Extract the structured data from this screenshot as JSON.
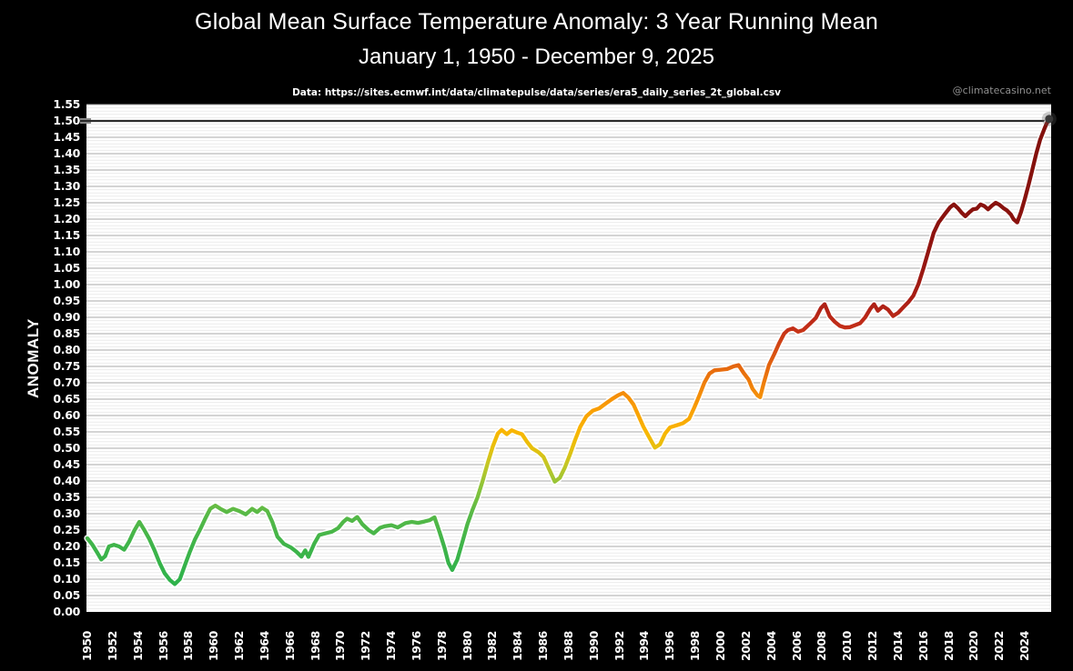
{
  "title": "Global Mean Surface Temperature Anomaly: 3 Year Running Mean",
  "subtitle": "January 1, 1950 - December 9, 2025",
  "source_note": "Data: https://sites.ecmwf.int/data/climatepulse/data/series/era5_daily_series_2t_global.csv",
  "credit": "@climatecasino.net",
  "chart_data": {
    "type": "line",
    "title": "Global Mean Surface Temperature Anomaly: 3 Year Running Mean",
    "subtitle": "January 1, 1950 - December 9, 2025",
    "xlabel": "",
    "ylabel": "ANOMALY",
    "ylim": [
      0,
      1.55
    ],
    "xlim": [
      1949.9,
      2026.1
    ],
    "grid": true,
    "y_major_step": 0.05,
    "y_minor_step": 0.01,
    "y_tick_labels": [
      "0.00",
      "0.05",
      "0.10",
      "0.15",
      "0.20",
      "0.25",
      "0.30",
      "0.35",
      "0.40",
      "0.45",
      "0.50",
      "0.55",
      "0.60",
      "0.65",
      "0.70",
      "0.75",
      "0.80",
      "0.85",
      "0.90",
      "0.95",
      "1.00",
      "1.05",
      "1.10",
      "1.15",
      "1.20",
      "1.25",
      "1.30",
      "1.35",
      "1.40",
      "1.45",
      "1.50",
      "1.55"
    ],
    "x_tick_labels": [
      "1950",
      "1952",
      "1954",
      "1956",
      "1958",
      "1960",
      "1962",
      "1964",
      "1966",
      "1968",
      "1970",
      "1972",
      "1974",
      "1976",
      "1978",
      "1980",
      "1982",
      "1984",
      "1986",
      "1988",
      "1990",
      "1992",
      "1994",
      "1996",
      "1998",
      "2000",
      "2002",
      "2004",
      "2006",
      "2008",
      "2010",
      "2012",
      "2014",
      "2016",
      "2018",
      "2020",
      "2022",
      "2024"
    ],
    "reference_line": {
      "value": 1.5,
      "color": "#2b2b2b",
      "cap_color": "#8f8f8f"
    },
    "end_marker": {
      "x": 2025.92,
      "y": 1.506,
      "color": "#3a3a3a"
    },
    "gridline_major_color": "#a8a8a8",
    "gridline_minor_color": "#ebebeb",
    "line_halo_color": "#ffffff",
    "color_stops": [
      [
        0.0,
        "#22b14c"
      ],
      [
        0.2,
        "#3eb44a"
      ],
      [
        0.3,
        "#57b947"
      ],
      [
        0.38,
        "#8ac43a"
      ],
      [
        0.45,
        "#c4c726"
      ],
      [
        0.5,
        "#e7c00d"
      ],
      [
        0.55,
        "#f9b602"
      ],
      [
        0.62,
        "#f99e05"
      ],
      [
        0.68,
        "#f2870a"
      ],
      [
        0.74,
        "#e76b0e"
      ],
      [
        0.8,
        "#d64d14"
      ],
      [
        0.87,
        "#c32e18"
      ],
      [
        0.94,
        "#ad2016"
      ],
      [
        1.05,
        "#971712"
      ],
      [
        1.2,
        "#8a120e"
      ],
      [
        1.55,
        "#7f0f0b"
      ]
    ],
    "series": [
      {
        "name": "3 Year Running Mean",
        "points": [
          [
            1950.0,
            0.225
          ],
          [
            1950.4,
            0.205
          ],
          [
            1950.8,
            0.18
          ],
          [
            1951.1,
            0.16
          ],
          [
            1951.4,
            0.17
          ],
          [
            1951.7,
            0.2
          ],
          [
            1952.1,
            0.205
          ],
          [
            1952.5,
            0.2
          ],
          [
            1952.9,
            0.19
          ],
          [
            1953.3,
            0.215
          ],
          [
            1953.7,
            0.248
          ],
          [
            1954.1,
            0.275
          ],
          [
            1954.5,
            0.25
          ],
          [
            1954.9,
            0.222
          ],
          [
            1955.3,
            0.188
          ],
          [
            1955.7,
            0.15
          ],
          [
            1956.1,
            0.118
          ],
          [
            1956.5,
            0.098
          ],
          [
            1956.9,
            0.085
          ],
          [
            1957.3,
            0.1
          ],
          [
            1957.7,
            0.143
          ],
          [
            1958.1,
            0.185
          ],
          [
            1958.5,
            0.222
          ],
          [
            1958.9,
            0.252
          ],
          [
            1959.3,
            0.285
          ],
          [
            1959.7,
            0.315
          ],
          [
            1960.1,
            0.325
          ],
          [
            1960.5,
            0.315
          ],
          [
            1961.0,
            0.305
          ],
          [
            1961.5,
            0.315
          ],
          [
            1962.0,
            0.308
          ],
          [
            1962.5,
            0.298
          ],
          [
            1963.0,
            0.315
          ],
          [
            1963.4,
            0.305
          ],
          [
            1963.8,
            0.318
          ],
          [
            1964.2,
            0.308
          ],
          [
            1964.6,
            0.275
          ],
          [
            1965.0,
            0.23
          ],
          [
            1965.5,
            0.208
          ],
          [
            1966.1,
            0.196
          ],
          [
            1966.5,
            0.184
          ],
          [
            1966.9,
            0.169
          ],
          [
            1967.2,
            0.188
          ],
          [
            1967.45,
            0.168
          ],
          [
            1967.9,
            0.208
          ],
          [
            1968.3,
            0.235
          ],
          [
            1968.8,
            0.24
          ],
          [
            1969.3,
            0.245
          ],
          [
            1969.8,
            0.256
          ],
          [
            1970.2,
            0.275
          ],
          [
            1970.5,
            0.285
          ],
          [
            1970.9,
            0.278
          ],
          [
            1971.3,
            0.29
          ],
          [
            1971.7,
            0.268
          ],
          [
            1972.2,
            0.25
          ],
          [
            1972.6,
            0.24
          ],
          [
            1973.1,
            0.257
          ],
          [
            1973.5,
            0.262
          ],
          [
            1974.0,
            0.265
          ],
          [
            1974.5,
            0.258
          ],
          [
            1975.1,
            0.271
          ],
          [
            1975.6,
            0.275
          ],
          [
            1976.1,
            0.272
          ],
          [
            1976.6,
            0.276
          ],
          [
            1977.0,
            0.28
          ],
          [
            1977.4,
            0.289
          ],
          [
            1977.8,
            0.244
          ],
          [
            1978.2,
            0.195
          ],
          [
            1978.5,
            0.15
          ],
          [
            1978.8,
            0.128
          ],
          [
            1979.2,
            0.16
          ],
          [
            1979.6,
            0.213
          ],
          [
            1980.0,
            0.268
          ],
          [
            1980.4,
            0.312
          ],
          [
            1980.8,
            0.35
          ],
          [
            1981.2,
            0.4
          ],
          [
            1981.6,
            0.455
          ],
          [
            1982.0,
            0.505
          ],
          [
            1982.4,
            0.545
          ],
          [
            1982.7,
            0.556
          ],
          [
            1983.1,
            0.543
          ],
          [
            1983.5,
            0.555
          ],
          [
            1983.9,
            0.548
          ],
          [
            1984.3,
            0.543
          ],
          [
            1984.7,
            0.52
          ],
          [
            1985.1,
            0.5
          ],
          [
            1985.6,
            0.488
          ],
          [
            1986.0,
            0.474
          ],
          [
            1986.4,
            0.44
          ],
          [
            1986.9,
            0.398
          ],
          [
            1987.3,
            0.41
          ],
          [
            1987.7,
            0.442
          ],
          [
            1988.1,
            0.482
          ],
          [
            1988.5,
            0.525
          ],
          [
            1988.9,
            0.565
          ],
          [
            1989.4,
            0.598
          ],
          [
            1989.9,
            0.615
          ],
          [
            1990.4,
            0.622
          ],
          [
            1990.9,
            0.636
          ],
          [
            1991.4,
            0.65
          ],
          [
            1991.9,
            0.662
          ],
          [
            1992.3,
            0.669
          ],
          [
            1992.7,
            0.655
          ],
          [
            1993.1,
            0.634
          ],
          [
            1993.5,
            0.6
          ],
          [
            1993.9,
            0.565
          ],
          [
            1994.4,
            0.53
          ],
          [
            1994.8,
            0.502
          ],
          [
            1995.2,
            0.512
          ],
          [
            1995.6,
            0.545
          ],
          [
            1996.0,
            0.564
          ],
          [
            1996.5,
            0.57
          ],
          [
            1997.0,
            0.576
          ],
          [
            1997.5,
            0.59
          ],
          [
            1997.9,
            0.624
          ],
          [
            1998.3,
            0.66
          ],
          [
            1998.7,
            0.7
          ],
          [
            1999.1,
            0.728
          ],
          [
            1999.5,
            0.738
          ],
          [
            2000.0,
            0.74
          ],
          [
            2000.5,
            0.742
          ],
          [
            2001.0,
            0.75
          ],
          [
            2001.4,
            0.754
          ],
          [
            2001.8,
            0.73
          ],
          [
            2002.2,
            0.71
          ],
          [
            2002.5,
            0.682
          ],
          [
            2002.9,
            0.661
          ],
          [
            2003.1,
            0.656
          ],
          [
            2003.4,
            0.7
          ],
          [
            2003.8,
            0.754
          ],
          [
            2004.2,
            0.786
          ],
          [
            2004.6,
            0.82
          ],
          [
            2005.0,
            0.85
          ],
          [
            2005.3,
            0.861
          ],
          [
            2005.7,
            0.866
          ],
          [
            2006.1,
            0.856
          ],
          [
            2006.5,
            0.861
          ],
          [
            2007.0,
            0.879
          ],
          [
            2007.5,
            0.898
          ],
          [
            2007.9,
            0.928
          ],
          [
            2008.2,
            0.94
          ],
          [
            2008.6,
            0.903
          ],
          [
            2009.0,
            0.886
          ],
          [
            2009.4,
            0.874
          ],
          [
            2009.8,
            0.869
          ],
          [
            2010.2,
            0.87
          ],
          [
            2010.6,
            0.876
          ],
          [
            2011.0,
            0.882
          ],
          [
            2011.4,
            0.9
          ],
          [
            2011.8,
            0.926
          ],
          [
            2012.1,
            0.94
          ],
          [
            2012.4,
            0.92
          ],
          [
            2012.8,
            0.934
          ],
          [
            2013.2,
            0.924
          ],
          [
            2013.6,
            0.904
          ],
          [
            2014.0,
            0.914
          ],
          [
            2014.4,
            0.93
          ],
          [
            2014.8,
            0.946
          ],
          [
            2015.2,
            0.966
          ],
          [
            2015.6,
            1.002
          ],
          [
            2016.0,
            1.05
          ],
          [
            2016.4,
            1.104
          ],
          [
            2016.8,
            1.158
          ],
          [
            2017.2,
            1.19
          ],
          [
            2017.7,
            1.216
          ],
          [
            2018.1,
            1.236
          ],
          [
            2018.4,
            1.245
          ],
          [
            2018.7,
            1.234
          ],
          [
            2019.0,
            1.22
          ],
          [
            2019.3,
            1.209
          ],
          [
            2019.6,
            1.22
          ],
          [
            2019.9,
            1.23
          ],
          [
            2020.2,
            1.232
          ],
          [
            2020.5,
            1.245
          ],
          [
            2020.8,
            1.24
          ],
          [
            2021.1,
            1.23
          ],
          [
            2021.4,
            1.241
          ],
          [
            2021.7,
            1.25
          ],
          [
            2022.0,
            1.244
          ],
          [
            2022.3,
            1.234
          ],
          [
            2022.6,
            1.226
          ],
          [
            2022.9,
            1.214
          ],
          [
            2023.1,
            1.2
          ],
          [
            2023.4,
            1.19
          ],
          [
            2023.7,
            1.222
          ],
          [
            2024.0,
            1.262
          ],
          [
            2024.3,
            1.306
          ],
          [
            2024.6,
            1.352
          ],
          [
            2024.9,
            1.4
          ],
          [
            2025.2,
            1.442
          ],
          [
            2025.5,
            1.472
          ],
          [
            2025.7,
            1.49
          ],
          [
            2025.92,
            1.506
          ]
        ]
      }
    ]
  }
}
